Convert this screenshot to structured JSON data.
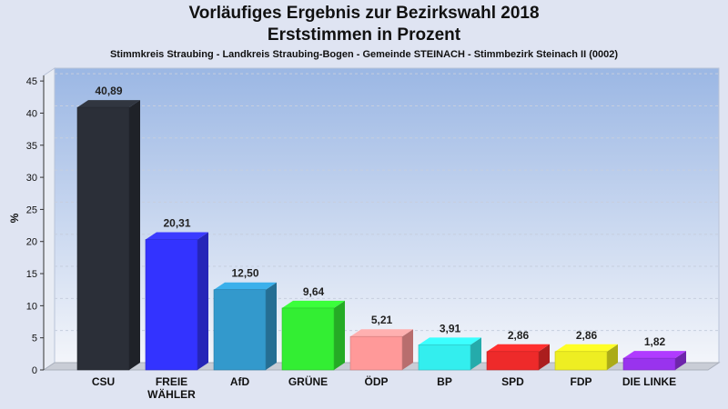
{
  "chart_data": {
    "type": "bar",
    "title": "Vorläufiges Ergebnis zur Bezirkswahl 2018",
    "subtitle": "Erststimmen in Prozent",
    "caption": "Stimmkreis Straubing - Landkreis Straubing-Bogen - Gemeinde STEINACH - Stimmbezirk Steinach II (0002)",
    "ylabel": "%",
    "xlabel": "",
    "ylim": [
      0,
      47
    ],
    "yticks": [
      0,
      5,
      10,
      15,
      20,
      25,
      30,
      35,
      40,
      45
    ],
    "grid": true,
    "categories": [
      "CSU",
      "FREIE WÄHLER",
      "AfD",
      "GRÜNE",
      "ÖDP",
      "BP",
      "SPD",
      "FDP",
      "DIE LINKE"
    ],
    "category_lines": [
      [
        "CSU"
      ],
      [
        "FREIE",
        "WÄHLER"
      ],
      [
        "AfD"
      ],
      [
        "GRÜNE"
      ],
      [
        "ÖDP"
      ],
      [
        "BP"
      ],
      [
        "SPD"
      ],
      [
        "FDP"
      ],
      [
        "DIE LINKE"
      ]
    ],
    "values": [
      40.89,
      20.31,
      12.5,
      9.64,
      5.21,
      3.91,
      2.86,
      2.86,
      1.82
    ],
    "value_labels": [
      "40,89",
      "20,31",
      "12,50",
      "9,64",
      "5,21",
      "3,91",
      "2,86",
      "2,86",
      "1,82"
    ],
    "colors": [
      "#2b2f38",
      "#3333ff",
      "#3399cc",
      "#33ee33",
      "#ff9999",
      "#33eeee",
      "#ee2a2a",
      "#eeee22",
      "#9933ee"
    ]
  }
}
